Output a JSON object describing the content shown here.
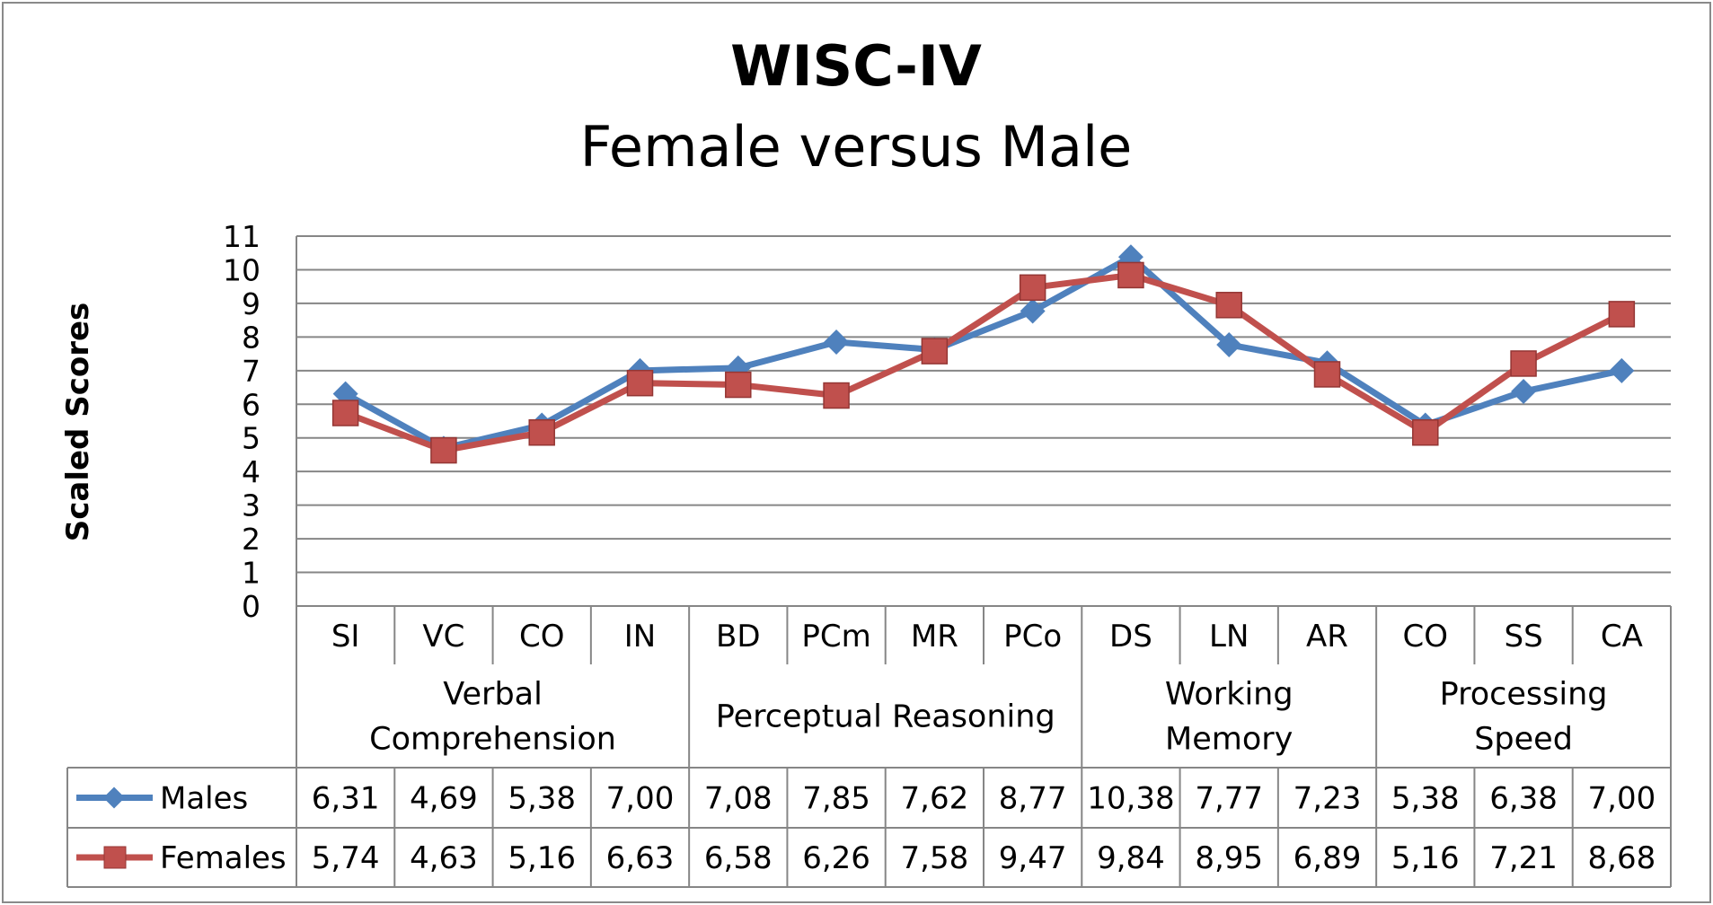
{
  "chart_data": {
    "type": "line",
    "title": "WISC-IV",
    "subtitle": "Female versus Male",
    "ylabel": "Scaled Scores",
    "xlabel": "",
    "ylim": [
      0,
      11
    ],
    "yticks": [
      "0",
      "1",
      "2",
      "3",
      "4",
      "5",
      "6",
      "7",
      "8",
      "9",
      "10",
      "11"
    ],
    "grid": true,
    "categories": [
      "SI",
      "VC",
      "CO",
      "IN",
      "BD",
      "PCm",
      "MR",
      "PCo",
      "DS",
      "LN",
      "AR",
      "CO",
      "SS",
      "CA"
    ],
    "groups": [
      {
        "label": [
          "Verbal",
          "Comprehension"
        ],
        "span": 4
      },
      {
        "label": [
          "Perceptual Reasoning"
        ],
        "span": 4
      },
      {
        "label": [
          "Working",
          "Memory"
        ],
        "span": 3
      },
      {
        "label": [
          "Processing",
          "Speed"
        ],
        "span": 3
      }
    ],
    "series": [
      {
        "name": "Males",
        "color": "#4F81BD",
        "marker": "diamond",
        "values": [
          6.31,
          4.69,
          5.38,
          7.0,
          7.08,
          7.85,
          7.62,
          8.77,
          10.38,
          7.77,
          7.23,
          5.38,
          6.38,
          7.0
        ],
        "labels": [
          "6,31",
          "4,69",
          "5,38",
          "7,00",
          "7,08",
          "7,85",
          "7,62",
          "8,77",
          "10,38",
          "7,77",
          "7,23",
          "5,38",
          "6,38",
          "7,00"
        ]
      },
      {
        "name": "Females",
        "color": "#C0504D",
        "marker": "square",
        "values": [
          5.74,
          4.63,
          5.16,
          6.63,
          6.58,
          6.26,
          7.58,
          9.47,
          9.84,
          8.95,
          6.89,
          5.16,
          7.21,
          8.68
        ],
        "labels": [
          "5,74",
          "4,63",
          "5,16",
          "6,63",
          "6,58",
          "6,26",
          "7,58",
          "9,47",
          "9,84",
          "8,95",
          "6,89",
          "5,16",
          "7,21",
          "8,68"
        ]
      }
    ]
  }
}
